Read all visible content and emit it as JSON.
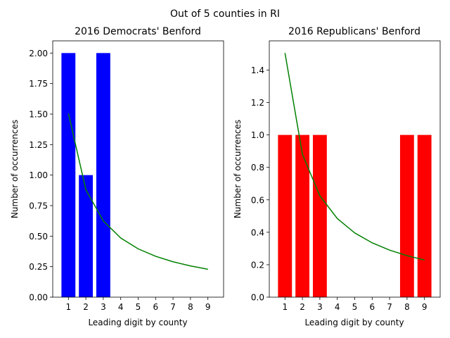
{
  "figure": {
    "suptitle": "Out of 5 counties in RI"
  },
  "colors": {
    "benford_line": "#008000",
    "axes": "#000000",
    "background": "#ffffff"
  },
  "chart_data": [
    {
      "type": "bar",
      "title": "2016 Democrats' Benford",
      "xlabel": "Leading digit by county",
      "ylabel": "Number of occurrences",
      "categories": [
        "1",
        "2",
        "3",
        "4",
        "5",
        "6",
        "7",
        "8",
        "9"
      ],
      "x": [
        1,
        2,
        3,
        4,
        5,
        6,
        7,
        8,
        9
      ],
      "series": [
        {
          "values": [
            2,
            1,
            2,
            0,
            0,
            0,
            0,
            0,
            0
          ],
          "color": "#0000ff",
          "kind": "bar"
        },
        {
          "values": [
            1.505,
            0.8805,
            0.6247,
            0.4846,
            0.3959,
            0.3348,
            0.29,
            0.2558,
            0.2288
          ],
          "color": "#008000",
          "kind": "line"
        }
      ],
      "xlim": [
        0.1,
        9.9
      ],
      "ylim": [
        0,
        2.1
      ],
      "yticks": [
        0.0,
        0.25,
        0.5,
        0.75,
        1.0,
        1.25,
        1.5,
        1.75,
        2.0
      ],
      "ytick_labels": [
        "0.00",
        "0.25",
        "0.50",
        "0.75",
        "1.00",
        "1.25",
        "1.50",
        "1.75",
        "2.00"
      ],
      "grid": false
    },
    {
      "type": "bar",
      "title": "2016 Republicans' Benford",
      "xlabel": "Leading digit by county",
      "ylabel": "Number of occurrences",
      "categories": [
        "1",
        "2",
        "3",
        "4",
        "5",
        "6",
        "7",
        "8",
        "9"
      ],
      "x": [
        1,
        2,
        3,
        4,
        5,
        6,
        7,
        8,
        9
      ],
      "series": [
        {
          "values": [
            1,
            1,
            1,
            0,
            0,
            0,
            0,
            1,
            1
          ],
          "color": "#ff0000",
          "kind": "bar"
        },
        {
          "values": [
            1.505,
            0.8805,
            0.6247,
            0.4846,
            0.3959,
            0.3348,
            0.29,
            0.2558,
            0.2288
          ],
          "color": "#008000",
          "kind": "line"
        }
      ],
      "xlim": [
        0.1,
        9.9
      ],
      "ylim": [
        0,
        1.58
      ],
      "yticks": [
        0.0,
        0.2,
        0.4,
        0.6,
        0.8,
        1.0,
        1.2,
        1.4
      ],
      "ytick_labels": [
        "0.0",
        "0.2",
        "0.4",
        "0.6",
        "0.8",
        "1.0",
        "1.2",
        "1.4"
      ],
      "grid": false
    }
  ]
}
